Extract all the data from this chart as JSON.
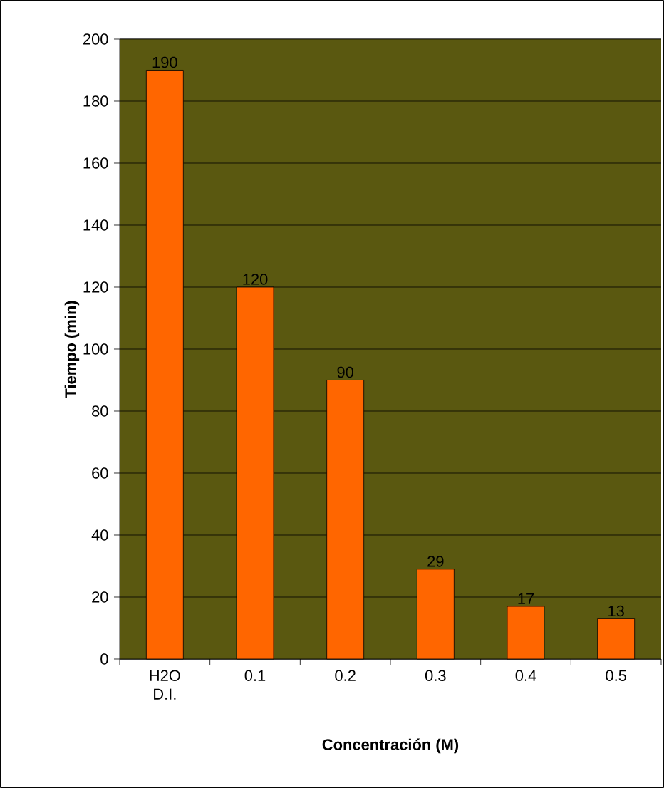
{
  "chart_data": {
    "type": "bar",
    "xlabel": "Concentración (M)",
    "ylabel": "Tiempo (min)",
    "categories": [
      "H2O D.I.",
      "0.1",
      "0.2",
      "0.3",
      "0.4",
      "0.5"
    ],
    "values": [
      190,
      120,
      90,
      29,
      17,
      13
    ],
    "color": "#ff6600",
    "ylim": [
      0,
      200
    ],
    "yticks": [
      0,
      20,
      40,
      60,
      80,
      100,
      120,
      140,
      160,
      180,
      200
    ],
    "grid": "y",
    "data_labels": true
  }
}
